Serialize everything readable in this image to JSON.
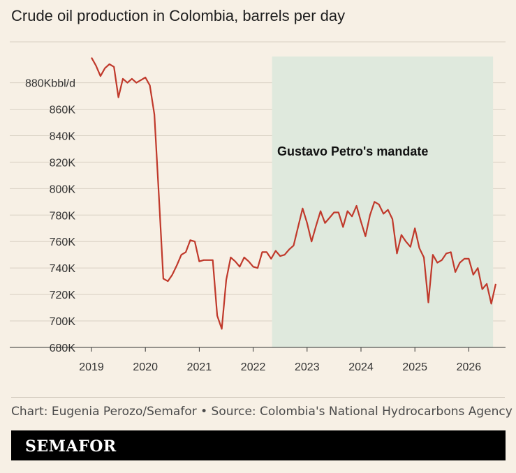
{
  "title": "Crude oil production in Colombia, barrels per day",
  "footer": {
    "credit": "Chart: Eugenia Perozo/Semafor • Source: Colombia's National Hydrocarbons Agency",
    "brand": "SEMAFOR"
  },
  "colors": {
    "background": "#f7f0e5",
    "line": "#c0392b",
    "shade": "#dfe9dd",
    "brand_bar": "#000000"
  },
  "chart_data": {
    "type": "line",
    "title": "Crude oil production in Colombia, barrels per day",
    "xlabel": "",
    "ylabel": "",
    "xlim": [
      2019,
      2026.7
    ],
    "ylim": [
      680,
      900
    ],
    "x_ticks": [
      2019,
      2020,
      2021,
      2022,
      2023,
      2024,
      2025,
      2026
    ],
    "y_ticks": [
      {
        "value": 680,
        "label": "680K"
      },
      {
        "value": 700,
        "label": "700K"
      },
      {
        "value": 720,
        "label": "720K"
      },
      {
        "value": 740,
        "label": "740K"
      },
      {
        "value": 760,
        "label": "760K"
      },
      {
        "value": 780,
        "label": "780K"
      },
      {
        "value": 800,
        "label": "800K"
      },
      {
        "value": 820,
        "label": "820K"
      },
      {
        "value": 840,
        "label": "840K"
      },
      {
        "value": 860,
        "label": "860K"
      },
      {
        "value": 880,
        "label": "880Kbbl/d"
      }
    ],
    "grid": "horizontal",
    "annotation": {
      "label": "Gustavo Petro's mandate",
      "x_start": 2022.35,
      "x_end": 2026.45
    },
    "series": [
      {
        "x": [
          2019.0,
          2019.083,
          2019.167,
          2019.25,
          2019.333,
          2019.417,
          2019.5,
          2019.583,
          2019.667,
          2019.75,
          2019.833,
          2019.917,
          2020.0,
          2020.083,
          2020.167,
          2020.25,
          2020.333,
          2020.417,
          2020.5,
          2020.583,
          2020.667,
          2020.75,
          2020.833,
          2020.917,
          2021.0,
          2021.083,
          2021.167,
          2021.25,
          2021.333,
          2021.417,
          2021.5,
          2021.583,
          2021.667,
          2021.75,
          2021.833,
          2021.917,
          2022.0,
          2022.083,
          2022.167,
          2022.25,
          2022.333,
          2022.417,
          2022.5,
          2022.583,
          2022.667,
          2022.75,
          2022.833,
          2022.917,
          2023.0,
          2023.083,
          2023.167,
          2023.25,
          2023.333,
          2023.417,
          2023.5,
          2023.583,
          2023.667,
          2023.75,
          2023.833,
          2023.917,
          2024.0,
          2024.083,
          2024.167,
          2024.25,
          2024.333,
          2024.417,
          2024.5,
          2024.583,
          2024.667,
          2024.75,
          2024.833,
          2024.917,
          2025.0,
          2025.083,
          2025.167,
          2025.25,
          2025.333,
          2025.417,
          2025.5,
          2025.583,
          2025.667,
          2025.75,
          2025.833,
          2025.917,
          2026.0,
          2026.083,
          2026.167,
          2026.25,
          2026.333,
          2026.417,
          2026.5
        ],
        "y": [
          899,
          893,
          885,
          891,
          894,
          892,
          869,
          883,
          880,
          883,
          880,
          882,
          884,
          878,
          856,
          795,
          732,
          730,
          735,
          742,
          750,
          752,
          761,
          760,
          745,
          746,
          746,
          746,
          704,
          694,
          731,
          748,
          745,
          741,
          748,
          745,
          741,
          740,
          752,
          752,
          747,
          753,
          749,
          750,
          754,
          757,
          771,
          785,
          774,
          760,
          772,
          783,
          774,
          778,
          782,
          782,
          771,
          783,
          779,
          787,
          775,
          764,
          780,
          790,
          788,
          781,
          784,
          777,
          751,
          765,
          760,
          756,
          770,
          755,
          748,
          714,
          750,
          744,
          746,
          751,
          752,
          737,
          744,
          747,
          747,
          735,
          740,
          724,
          728,
          713,
          728
        ]
      }
    ]
  }
}
